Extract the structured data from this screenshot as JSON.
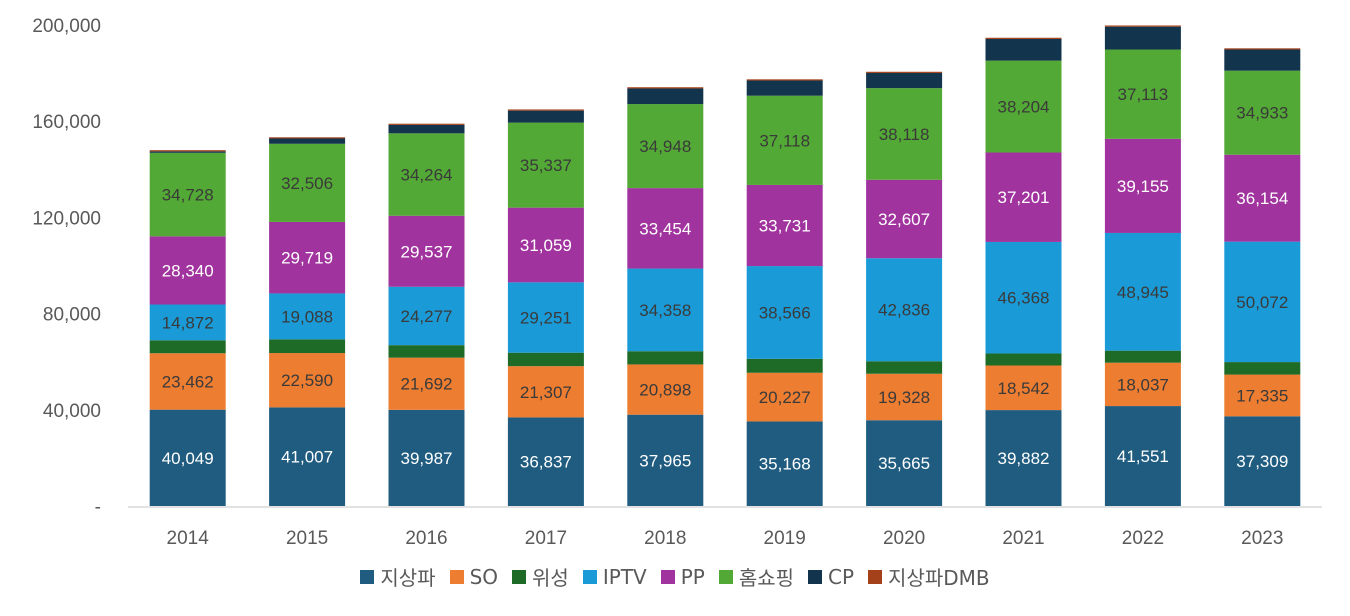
{
  "chart_data": {
    "type": "bar",
    "stacked": true,
    "categories": [
      "2014",
      "2015",
      "2016",
      "2017",
      "2018",
      "2019",
      "2020",
      "2021",
      "2022",
      "2023"
    ],
    "ylim": [
      0,
      200000
    ],
    "yticks": [
      0,
      40000,
      80000,
      120000,
      160000,
      200000
    ],
    "ytick_labels": [
      "-",
      "40,000",
      "80,000",
      "120,000",
      "160,000",
      "200,000"
    ],
    "grid": false,
    "legend_position": "bottom",
    "series": [
      {
        "name": "지상파",
        "color": "#1F5C80",
        "label_color": "#ffffff",
        "values": [
          40049,
          41007,
          39987,
          36837,
          37965,
          35168,
          35665,
          39882,
          41551,
          37309
        ],
        "labels": [
          "40,049",
          "41,007",
          "39,987",
          "36,837",
          "37,965",
          "35,168",
          "35,665",
          "39,882",
          "41,551",
          "37,309"
        ]
      },
      {
        "name": "SO",
        "color": "#ED7D31",
        "label_color": "#3a3a3a",
        "values": [
          23462,
          22590,
          21692,
          21307,
          20898,
          20227,
          19328,
          18542,
          18037,
          17335
        ],
        "labels": [
          "23,462",
          "22,590",
          "21,692",
          "21,307",
          "20,898",
          "20,227",
          "19,328",
          "18,542",
          "18,037",
          "17,335"
        ]
      },
      {
        "name": "위성",
        "color": "#1E6B28",
        "label_color": null,
        "values": [
          5400,
          5700,
          5200,
          5600,
          5500,
          5800,
          5200,
          5000,
          5000,
          5200
        ],
        "labels": null
      },
      {
        "name": "IPTV",
        "color": "#1A9BD7",
        "label_color": "#3a3a3a",
        "values": [
          14872,
          19088,
          24277,
          29251,
          34358,
          38566,
          42836,
          46368,
          48945,
          50072
        ],
        "labels": [
          "14,872",
          "19,088",
          "24,277",
          "29,251",
          "34,358",
          "38,566",
          "42,836",
          "46,368",
          "48,945",
          "50,072"
        ]
      },
      {
        "name": "PP",
        "color": "#A0339E",
        "label_color": "#ffffff",
        "values": [
          28340,
          29719,
          29537,
          31059,
          33454,
          33731,
          32607,
          37201,
          39155,
          36154
        ],
        "labels": [
          "28,340",
          "29,719",
          "29,537",
          "31,059",
          "33,454",
          "33,731",
          "32,607",
          "37,201",
          "39,155",
          "36,154"
        ]
      },
      {
        "name": "홈쇼핑",
        "color": "#53A935",
        "label_color": "#3a3a3a",
        "values": [
          34728,
          32506,
          34264,
          35337,
          34948,
          37118,
          38118,
          38204,
          37113,
          34933
        ],
        "labels": [
          "34,728",
          "32,506",
          "34,264",
          "35,337",
          "34,948",
          "37,118",
          "38,118",
          "38,204",
          "37,113",
          "34,933"
        ]
      },
      {
        "name": "CP",
        "color": "#12344C",
        "label_color": null,
        "values": [
          600,
          2200,
          3500,
          5000,
          6500,
          6300,
          6300,
          9000,
          9500,
          8800
        ],
        "labels": null
      },
      {
        "name": "지상파DMB",
        "color": "#A5411A",
        "label_color": null,
        "values": [
          500,
          500,
          500,
          500,
          500,
          500,
          500,
          500,
          500,
          500
        ],
        "labels": null
      }
    ]
  }
}
